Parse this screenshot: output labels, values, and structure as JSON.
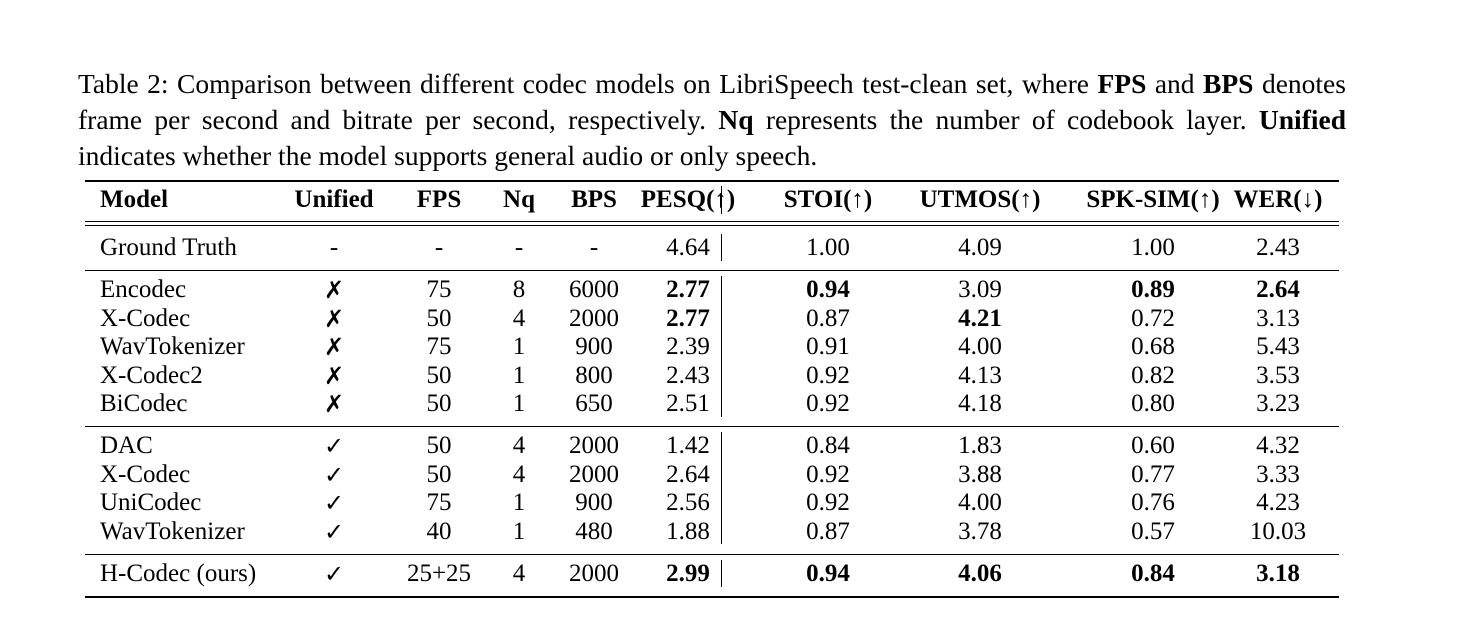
{
  "caption": {
    "part1": "Table 2: Comparison between different codec models on LibriSpeech test-clean set, where ",
    "fps": "FPS",
    "part2": " and ",
    "bps": "BPS",
    "part3": " denotes frame per second and bitrate per second, respectively. ",
    "nq": "Nq",
    "part4": " represents the number of codebook layer. ",
    "unified": "Unified",
    "part5": " indicates whether the model supports general audio or only speech."
  },
  "table": {
    "headers": [
      "Model",
      "Unified",
      "FPS",
      "Nq",
      "BPS",
      "PESQ(↑)",
      "STOI(↑)",
      "UTMOS(↑)",
      "SPK-SIM(↑)",
      "WER(↓)"
    ],
    "groups": [
      {
        "rows": [
          {
            "cells": [
              "Ground Truth",
              "-",
              "-",
              "-",
              "-",
              "4.64",
              "1.00",
              "4.09",
              "1.00",
              "2.43"
            ],
            "bold": []
          }
        ]
      },
      {
        "rows": [
          {
            "cells": [
              "Encodec",
              "✗",
              "75",
              "8",
              "6000",
              "2.77",
              "0.94",
              "3.09",
              "0.89",
              "2.64"
            ],
            "bold": [
              5,
              6,
              8,
              9
            ]
          },
          {
            "cells": [
              "X-Codec",
              "✗",
              "50",
              "4",
              "2000",
              "2.77",
              "0.87",
              "4.21",
              "0.72",
              "3.13"
            ],
            "bold": [
              5,
              7
            ]
          },
          {
            "cells": [
              "WavTokenizer",
              "✗",
              "75",
              "1",
              "900",
              "2.39",
              "0.91",
              "4.00",
              "0.68",
              "5.43"
            ],
            "bold": []
          },
          {
            "cells": [
              "X-Codec2",
              "✗",
              "50",
              "1",
              "800",
              "2.43",
              "0.92",
              "4.13",
              "0.82",
              "3.53"
            ],
            "bold": []
          },
          {
            "cells": [
              "BiCodec",
              "✗",
              "50",
              "1",
              "650",
              "2.51",
              "0.92",
              "4.18",
              "0.80",
              "3.23"
            ],
            "bold": []
          }
        ]
      },
      {
        "rows": [
          {
            "cells": [
              "DAC",
              "✓",
              "50",
              "4",
              "2000",
              "1.42",
              "0.84",
              "1.83",
              "0.60",
              "4.32"
            ],
            "bold": []
          },
          {
            "cells": [
              "X-Codec",
              "✓",
              "50",
              "4",
              "2000",
              "2.64",
              "0.92",
              "3.88",
              "0.77",
              "3.33"
            ],
            "bold": []
          },
          {
            "cells": [
              "UniCodec",
              "✓",
              "75",
              "1",
              "900",
              "2.56",
              "0.92",
              "4.00",
              "0.76",
              "4.23"
            ],
            "bold": []
          },
          {
            "cells": [
              "WavTokenizer",
              "✓",
              "40",
              "1",
              "480",
              "1.88",
              "0.87",
              "3.78",
              "0.57",
              "10.03"
            ],
            "bold": []
          }
        ]
      },
      {
        "rows": [
          {
            "cells": [
              "H-Codec (ours)",
              "✓",
              "25+25",
              "4",
              "2000",
              "2.99",
              "0.94",
              "4.06",
              "0.84",
              "3.18"
            ],
            "bold": [
              5,
              6,
              7,
              8,
              9
            ]
          }
        ]
      }
    ]
  }
}
